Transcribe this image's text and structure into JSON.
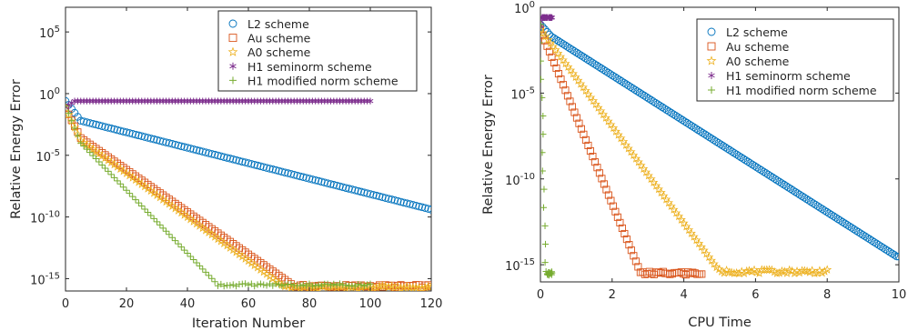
{
  "series_styles": [
    {
      "key": "L2",
      "color": "#0072bd",
      "marker": "circle"
    },
    {
      "key": "Au",
      "color": "#d95319",
      "marker": "square"
    },
    {
      "key": "A0",
      "color": "#edb120",
      "marker": "star"
    },
    {
      "key": "H1semi",
      "color": "#7e2f8e",
      "marker": "asterisk"
    },
    {
      "key": "H1mod",
      "color": "#77ac30",
      "marker": "plus"
    }
  ],
  "chart_data": [
    {
      "type": "scatter",
      "xlabel": "Iteration Number",
      "ylabel": "Relative Energy Error",
      "xlim": [
        0,
        120
      ],
      "ylim_log10": [
        -16,
        7
      ],
      "yscale": "log",
      "x_ticks": [
        "0",
        "20",
        "40",
        "60",
        "80",
        "100",
        "120"
      ],
      "y_ticks": [
        {
          "base": "10",
          "exp": "-15"
        },
        {
          "base": "10",
          "exp": "-10"
        },
        {
          "base": "10",
          "exp": "-5"
        },
        {
          "base": "10",
          "exp": "0"
        },
        {
          "base": "10",
          "exp": "5"
        }
      ],
      "grid": false,
      "legend_position": "top-right",
      "series": [
        {
          "name": "L2 scheme",
          "marker": "circle",
          "x_range": [
            0,
            120
          ],
          "log10_y": [
            [
              0,
              -0.6
            ],
            [
              5,
              -2.2
            ],
            [
              120,
              -9.4
            ]
          ]
        },
        {
          "name": "Au scheme",
          "marker": "square",
          "x_range": [
            0,
            120
          ],
          "log10_y": [
            [
              0,
              -1.2
            ],
            [
              5,
              -3.6
            ],
            [
              75,
              -15.6
            ],
            [
              120,
              -15.6
            ]
          ]
        },
        {
          "name": "A0 scheme",
          "marker": "star",
          "x_range": [
            0,
            120
          ],
          "log10_y": [
            [
              0,
              -1.2
            ],
            [
              5,
              -3.8
            ],
            [
              72,
              -15.7
            ],
            [
              120,
              -15.7
            ]
          ]
        },
        {
          "name": "H1 seminorm scheme",
          "marker": "asterisk",
          "x_range": [
            0,
            100
          ],
          "log10_y": [
            [
              0,
              -1.1
            ],
            [
              3,
              -0.6
            ],
            [
              100,
              -0.6
            ]
          ]
        },
        {
          "name": "H1 modified norm scheme",
          "marker": "plus",
          "x_range": [
            0,
            100
          ],
          "log10_y": [
            [
              0,
              -1.0
            ],
            [
              5,
              -4.0
            ],
            [
              50,
              -15.5
            ],
            [
              100,
              -15.5
            ]
          ]
        }
      ]
    },
    {
      "type": "scatter",
      "xlabel": "CPU Time",
      "ylabel": "Relative Energy Error",
      "xlim": [
        0,
        10
      ],
      "ylim_log10": [
        -16,
        0
      ],
      "yscale": "log",
      "x_ticks": [
        "0",
        "2",
        "4",
        "6",
        "8",
        "10"
      ],
      "y_ticks": [
        {
          "base": "10",
          "exp": "-15"
        },
        {
          "base": "10",
          "exp": "-10"
        },
        {
          "base": "10",
          "exp": "-5"
        },
        {
          "base": "10",
          "exp": "0"
        }
      ],
      "grid": false,
      "legend_position": "top-right",
      "series": [
        {
          "name": "L2 scheme",
          "marker": "circle",
          "x_range": [
            0,
            10
          ],
          "log10_y": [
            [
              0,
              -1.0
            ],
            [
              0.3,
              -1.7
            ],
            [
              10,
              -14.6
            ]
          ]
        },
        {
          "name": "Au scheme",
          "marker": "square",
          "x_range": [
            0,
            4.5
          ],
          "log10_y": [
            [
              0,
              -1.3
            ],
            [
              2.8,
              -15.5
            ],
            [
              4.5,
              -15.5
            ]
          ]
        },
        {
          "name": "A0 scheme",
          "marker": "star",
          "x_range": [
            0,
            8
          ],
          "log10_y": [
            [
              0,
              -1.3
            ],
            [
              5.0,
              -15.4
            ],
            [
              8.0,
              -15.4
            ]
          ]
        },
        {
          "name": "H1 seminorm scheme",
          "marker": "asterisk",
          "x_range": [
            0,
            0.32
          ],
          "log10_y": [
            [
              0,
              -1.1
            ],
            [
              0.02,
              -0.6
            ],
            [
              0.32,
              -0.6
            ]
          ]
        },
        {
          "name": "H1 modified norm scheme",
          "marker": "plus",
          "x_range": [
            0,
            0.32
          ],
          "log10_y": [
            [
              0,
              -1.0
            ],
            [
              0.15,
              -15.5
            ],
            [
              0.32,
              -15.5
            ]
          ]
        }
      ]
    }
  ]
}
